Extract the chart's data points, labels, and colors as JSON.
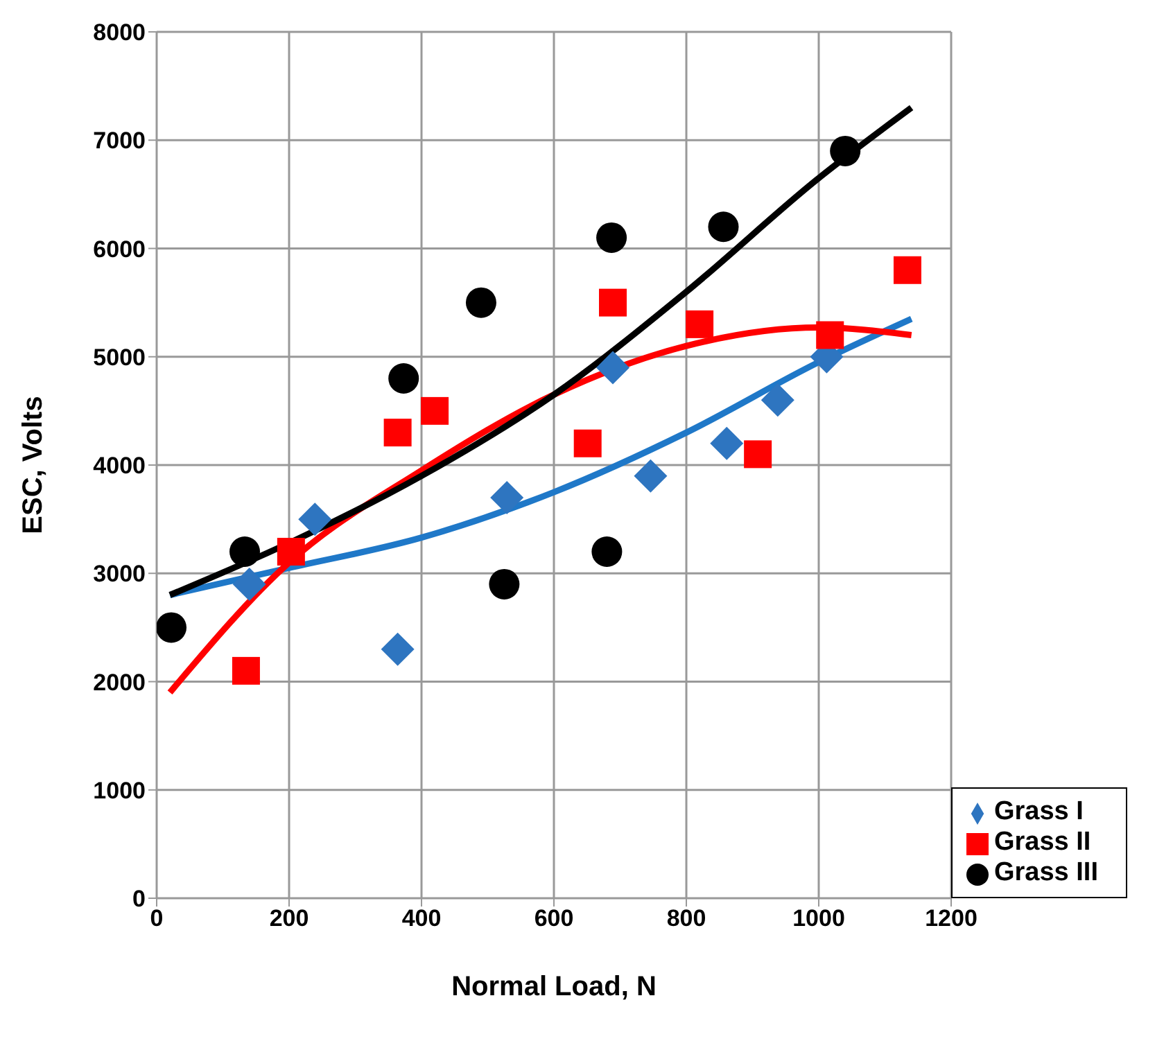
{
  "chart_data": {
    "type": "scatter",
    "xlabel": "Normal Load, N",
    "ylabel": "ESC, Volts",
    "xlim": [
      0,
      1200
    ],
    "xticks": [
      0,
      200,
      400,
      600,
      800,
      1000,
      1200
    ],
    "ylim": [
      0,
      8000
    ],
    "yticks": [
      0,
      1000,
      2000,
      3000,
      4000,
      5000,
      6000,
      7000,
      8000
    ],
    "grid": true,
    "legend": "bottom right",
    "series": [
      {
        "name": "Grass I",
        "color": "#2e75c0",
        "marker": "diamond",
        "x": [
          140,
          239,
          364,
          529,
          689,
          746,
          861,
          938,
          1012
        ],
        "values": [
          2900,
          3500,
          2300,
          3700,
          4900,
          3900,
          4200,
          4600,
          5000
        ]
      },
      {
        "name": "Grass II",
        "color": "#ff0000",
        "marker": "square",
        "x": [
          135,
          203,
          364,
          420,
          651,
          689,
          820,
          908,
          1017,
          1134
        ],
        "values": [
          2100,
          3200,
          4300,
          4500,
          4200,
          5500,
          5300,
          4100,
          5200,
          5800
        ]
      },
      {
        "name": "Grass III",
        "color": "#000000",
        "marker": "circle",
        "x": [
          22,
          133,
          373,
          490,
          525,
          680,
          687,
          856,
          1040
        ],
        "values": [
          2500,
          3200,
          4800,
          5500,
          2900,
          3200,
          6100,
          6200,
          6900
        ]
      },
      {
        "type": "line",
        "color": "#1f78c8",
        "marker": "none",
        "x": [
          20,
          200,
          400,
          600,
          800,
          1000,
          1140
        ],
        "values": [
          2800,
          3050,
          3330,
          3750,
          4300,
          4950,
          5350
        ]
      },
      {
        "type": "line",
        "color": "#ff0000",
        "marker": "none",
        "x": [
          20,
          200,
          400,
          600,
          800,
          1000,
          1140
        ],
        "values": [
          1900,
          3100,
          3950,
          4650,
          5100,
          5270,
          5200
        ]
      },
      {
        "type": "line",
        "color": "#000000",
        "marker": "none",
        "x": [
          20,
          200,
          400,
          600,
          800,
          1000,
          1140
        ],
        "values": [
          2800,
          3280,
          3900,
          4650,
          5600,
          6650,
          7300
        ]
      }
    ]
  }
}
